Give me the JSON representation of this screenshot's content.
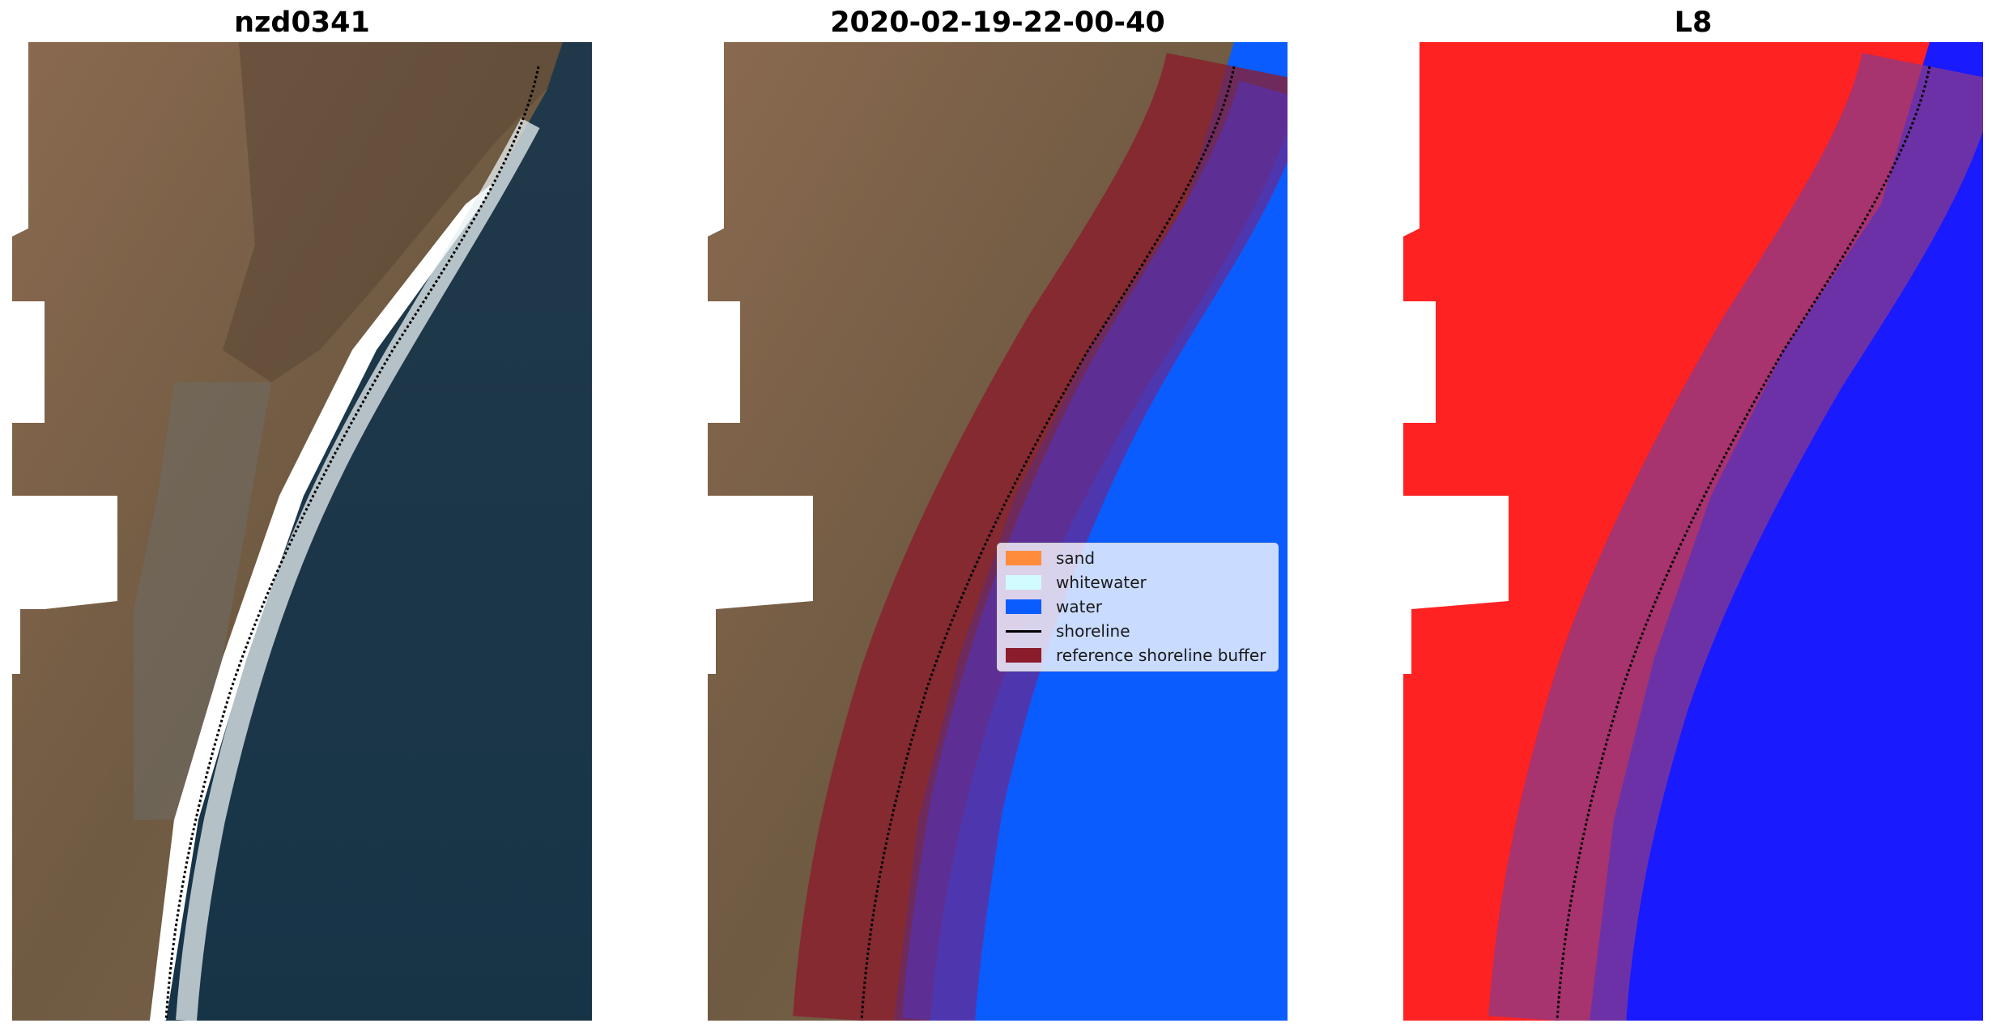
{
  "panels": [
    {
      "title": "nzd0341"
    },
    {
      "title": "2020-02-19-22-00-40"
    },
    {
      "title": "L8"
    }
  ],
  "legend": {
    "items": [
      {
        "label": "sand",
        "color": "#ff8c3a",
        "kind": "patch"
      },
      {
        "label": "whitewater",
        "color": "#d2fbff",
        "kind": "patch"
      },
      {
        "label": "water",
        "color": "#0a5cff",
        "kind": "patch"
      },
      {
        "label": "shoreline",
        "color": "#000000",
        "kind": "line"
      },
      {
        "label": "reference shoreline buffer",
        "color": "#8b1c2c",
        "kind": "patch"
      }
    ]
  },
  "colors": {
    "land": "#7d6048",
    "sea": "#1a3a4a",
    "classified_water": "#0a5cff",
    "buffer": "#8b1c2c",
    "index_land": "#ff2222",
    "index_water": "#1a1aff"
  }
}
